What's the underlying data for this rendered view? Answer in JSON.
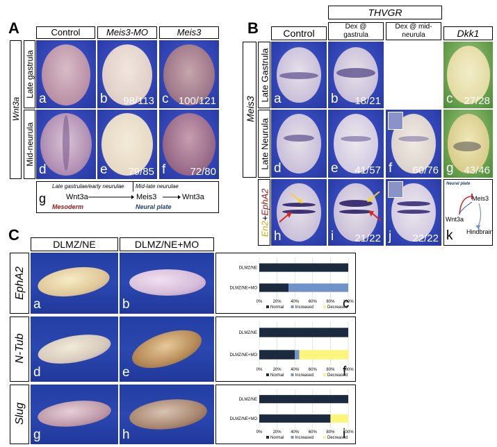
{
  "panelA": {
    "letter": "A",
    "col_headers": [
      "Control",
      "Meis3-MO",
      "Meis3"
    ],
    "gene": "Wnt3a",
    "row_labels": [
      "Late gastrula",
      "Mid-neurula"
    ],
    "subpanels": [
      {
        "letter": "a",
        "count": ""
      },
      {
        "letter": "b",
        "count": "98/113"
      },
      {
        "letter": "c",
        "count": "100/121"
      },
      {
        "letter": "d",
        "count": ""
      },
      {
        "letter": "e",
        "count": "79/85"
      },
      {
        "letter": "f",
        "count": "72/80"
      }
    ],
    "g": {
      "letter": "g",
      "stage1": "Late gastrulae/early neurulae",
      "stage2": "Mid-late neurulae",
      "left": "Wnt3a",
      "mid": "Meis3",
      "right": "Wnt3a",
      "tissue1": "Mesoderm",
      "tissue2": "Neural plate"
    }
  },
  "panelB": {
    "letter": "B",
    "top_header": "THVGR",
    "col_headers": [
      "Control",
      "Dex @ gastrula",
      "Dex @ mid-neurula",
      "Dkk1"
    ],
    "gene": "Meis3",
    "row_labels": [
      "Late Gastrula",
      "Late Neurula"
    ],
    "row3_label_a": "En2",
    "row3_label_plus": "+",
    "row3_label_b": "EphA2",
    "subpanels": [
      {
        "letter": "a",
        "count": ""
      },
      {
        "letter": "b",
        "count": "18/21"
      },
      {
        "letter": "c",
        "count": "27/28"
      },
      {
        "letter": "d",
        "count": ""
      },
      {
        "letter": "e",
        "count": "41/57"
      },
      {
        "letter": "f",
        "count": "60/76"
      },
      {
        "letter": "g",
        "count": "43/46"
      },
      {
        "letter": "h",
        "count": ""
      },
      {
        "letter": "i",
        "count": "21/22"
      },
      {
        "letter": "j",
        "count": "22/22"
      }
    ],
    "k": {
      "letter": "k",
      "title": "Neural plate",
      "meis": "Meis3",
      "wnt": "Wnt3a",
      "hind": "Hindbrain"
    }
  },
  "panelC": {
    "letter": "C",
    "col_headers": [
      "DLMZ/NE",
      "DLMZ/NE+MO"
    ],
    "rows": [
      {
        "gene": "EphA2",
        "left": "a",
        "right": "b",
        "chart": "c"
      },
      {
        "gene": "N-Tub",
        "left": "d",
        "right": "e",
        "chart": "f"
      },
      {
        "gene": "Slug",
        "left": "g",
        "right": "h",
        "chart": "i"
      }
    ]
  },
  "chart_data": [
    {
      "type": "bar",
      "orientation": "horizontal",
      "stacked": true,
      "categories": [
        "DLMZ/NE",
        "DLMZ/NE+MO"
      ],
      "series": [
        {
          "name": "Normal",
          "values": [
            100,
            33
          ]
        },
        {
          "name": "Increased",
          "values": [
            0,
            67
          ]
        },
        {
          "name": "Decreased",
          "values": [
            0,
            0
          ]
        }
      ],
      "ticks": [
        "0%",
        "20%",
        "40%",
        "60%",
        "80%",
        "100%"
      ],
      "xlim": [
        0,
        100
      ],
      "colors": {
        "Normal": "#1c2a40",
        "Increased": "#6f93c8",
        "Decreased": "#fbf57c"
      }
    },
    {
      "type": "bar",
      "orientation": "horizontal",
      "stacked": true,
      "categories": [
        "DLMZ/NE",
        "DLMZ/NE+MO"
      ],
      "series": [
        {
          "name": "Normal",
          "values": [
            100,
            40
          ]
        },
        {
          "name": "Increased",
          "values": [
            0,
            5
          ]
        },
        {
          "name": "Decreased",
          "values": [
            0,
            55
          ]
        }
      ],
      "ticks": [
        "0%",
        "20%",
        "40%",
        "60%",
        "80%",
        "100%"
      ],
      "xlim": [
        0,
        100
      ],
      "colors": {
        "Normal": "#1c2a40",
        "Increased": "#6f93c8",
        "Decreased": "#fbf57c"
      }
    },
    {
      "type": "bar",
      "orientation": "horizontal",
      "stacked": true,
      "categories": [
        "DLMZ/NE",
        "DLMZ/NE+MO"
      ],
      "series": [
        {
          "name": "Normal",
          "values": [
            100,
            80
          ]
        },
        {
          "name": "Increased",
          "values": [
            0,
            0
          ]
        },
        {
          "name": "Decreased",
          "values": [
            0,
            20
          ]
        }
      ],
      "ticks": [
        "0%",
        "20%",
        "40%",
        "60%",
        "80%",
        "100%"
      ],
      "xlim": [
        0,
        100
      ],
      "colors": {
        "Normal": "#1c2a40",
        "Increased": "#6f93c8",
        "Decreased": "#fbf57c"
      }
    }
  ]
}
